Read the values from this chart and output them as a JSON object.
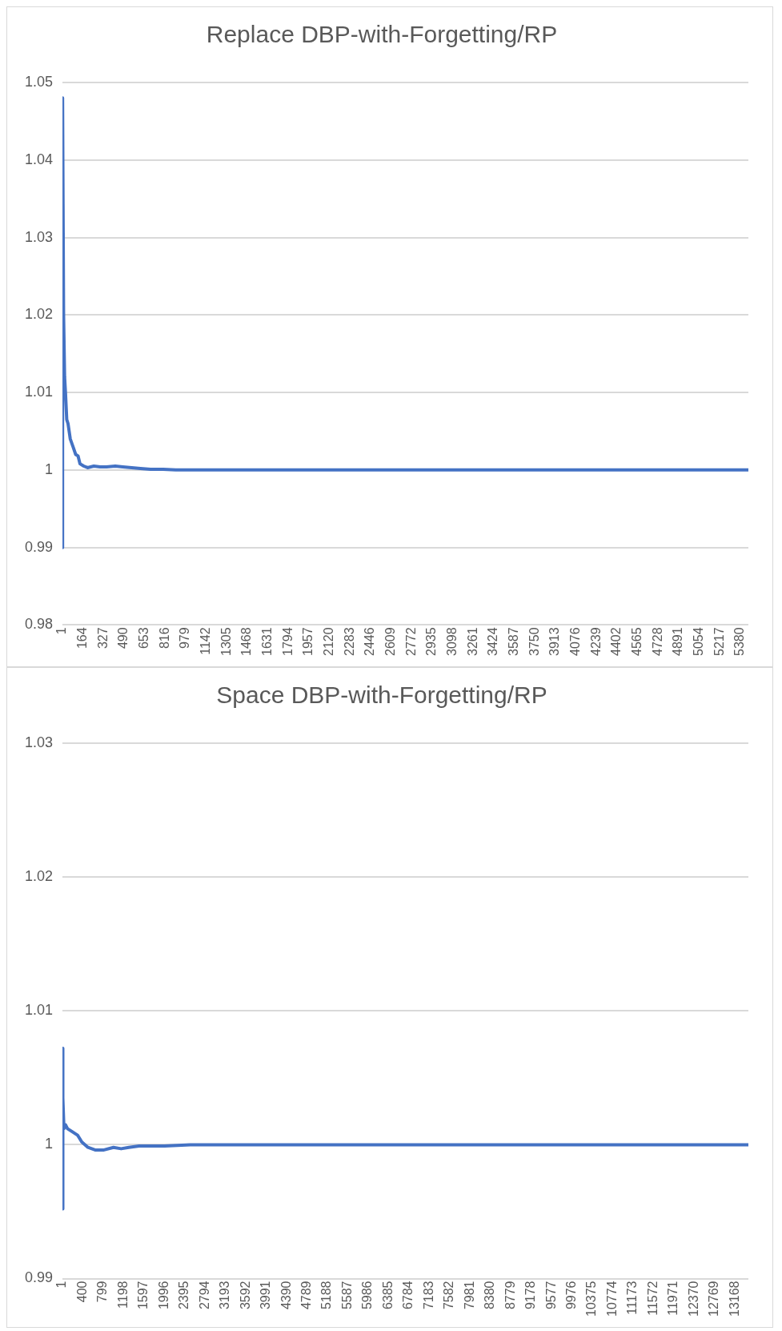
{
  "chart_data": [
    {
      "type": "line",
      "title": "Replace DBP-with-Forgetting/RP",
      "xlim": [
        1,
        5444
      ],
      "ylim": [
        0.98,
        1.05
      ],
      "yticks": [
        0.98,
        0.99,
        1,
        1.01,
        1.02,
        1.03,
        1.04,
        1.05
      ],
      "xticks": [
        1,
        164,
        327,
        490,
        653,
        816,
        979,
        1142,
        1305,
        1468,
        1631,
        1794,
        1957,
        2120,
        2283,
        2446,
        2609,
        2772,
        2935,
        3098,
        3261,
        3424,
        3587,
        3750,
        3913,
        4076,
        4239,
        4402,
        4565,
        4728,
        4891,
        5054,
        5217,
        5380
      ],
      "grid": "y",
      "marker": "none",
      "line_style": "solid",
      "series": [
        {
          "color": "#4472c4",
          "x": [
            1,
            2,
            10,
            18,
            25,
            35,
            45,
            63,
            85,
            106,
            125,
            140,
            170,
            200,
            250,
            300,
            350,
            420,
            480,
            550,
            620,
            700,
            800,
            900,
            1500,
            2500,
            3500,
            4500,
            5444
          ],
          "values": [
            0.99,
            1.048,
            1.02,
            1.012,
            1.01,
            1.0065,
            1.006,
            1.004,
            1.003,
            1.002,
            1.0018,
            1.0008,
            1.0005,
            1.0003,
            1.0005,
            1.0004,
            1.0004,
            1.0005,
            1.0004,
            1.0003,
            1.0002,
            1.0001,
            1.0001,
            1,
            1,
            1,
            1,
            1,
            1
          ]
        }
      ]
    },
    {
      "type": "line",
      "title": "Space DBP-with-Forgetting/RP",
      "xlim": [
        1,
        13430
      ],
      "ylim": [
        0.99,
        1.03
      ],
      "yticks": [
        0.99,
        1,
        1.01,
        1.02,
        1.03
      ],
      "xticks": [
        1,
        400,
        799,
        1198,
        1597,
        1996,
        2395,
        2794,
        3193,
        3592,
        3991,
        4390,
        4789,
        5188,
        5587,
        5986,
        6385,
        6784,
        7183,
        7582,
        7981,
        8380,
        8779,
        9178,
        9577,
        9976,
        10375,
        10774,
        11173,
        11572,
        11971,
        12370,
        12769,
        13168
      ],
      "grid": "y",
      "marker": "none",
      "line_style": "solid",
      "series": [
        {
          "color": "#4472c4",
          "x": [
            1,
            2,
            15,
            30,
            60,
            100,
            180,
            300,
            380,
            500,
            650,
            800,
            1000,
            1150,
            1300,
            1500,
            2000,
            2500,
            4000,
            6000,
            8000,
            10000,
            12000,
            13430
          ],
          "values": [
            0.9952,
            1.0072,
            1.0035,
            1.0012,
            1.0015,
            1.0012,
            1.001,
            1.0007,
            1.0002,
            0.9998,
            0.9996,
            0.9996,
            0.9998,
            0.9997,
            0.9998,
            0.9999,
            0.9999,
            1,
            1,
            1,
            1,
            1,
            1,
            1
          ]
        }
      ]
    }
  ]
}
